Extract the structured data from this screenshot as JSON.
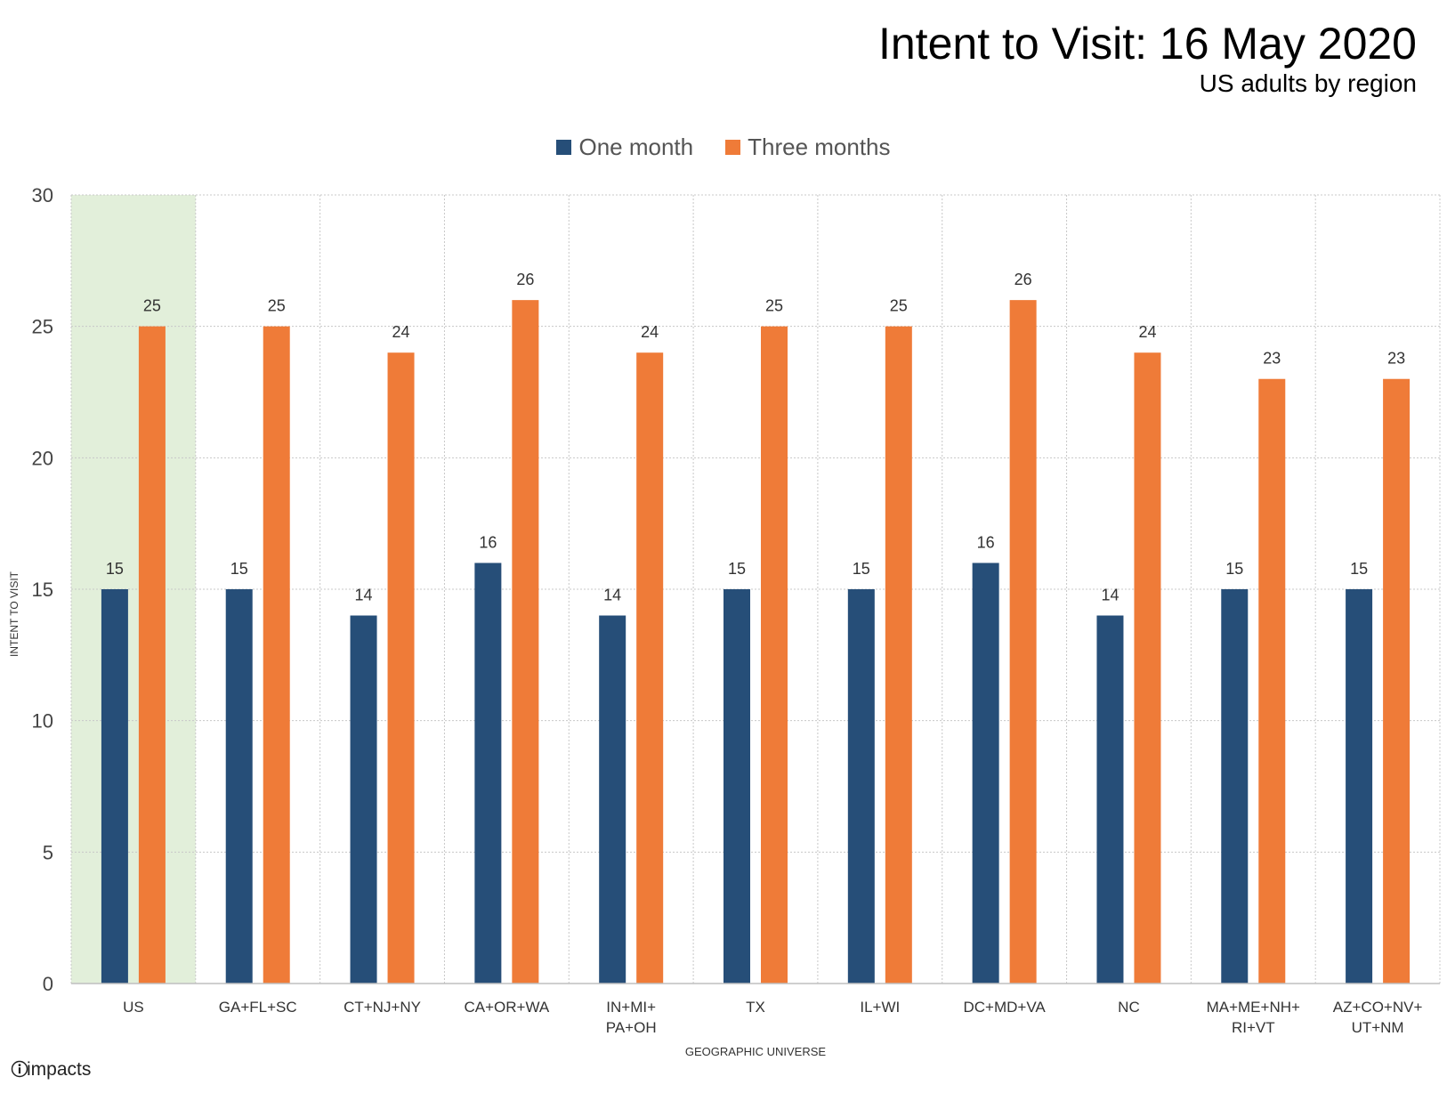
{
  "chart_data": {
    "type": "bar",
    "title": "Intent to Visit: 16 May 2020",
    "subtitle": "US adults by region",
    "xlabel": "GEOGRAPHIC UNIVERSE",
    "ylabel": "INTENT TO VISIT",
    "ylim": [
      0,
      30
    ],
    "yticks": [
      0,
      5,
      10,
      15,
      20,
      25,
      30
    ],
    "grid": true,
    "legend_position": "top-center",
    "highlight_category": "US",
    "highlight_color": "#e2efda",
    "categories": [
      "US",
      "GA+FL+SC",
      "CT+NJ+NY",
      "CA+OR+WA",
      "IN+MI+\nPA+OH",
      "TX",
      "IL+WI",
      "DC+MD+VA",
      "NC",
      "MA+ME+NH+\nRI+VT",
      "AZ+CO+NV+\nUT+NM"
    ],
    "series": [
      {
        "name": "One month",
        "color": "#264e78",
        "values": [
          15,
          15,
          14,
          16,
          14,
          15,
          15,
          16,
          14,
          15,
          15
        ]
      },
      {
        "name": "Three months",
        "color": "#ef7b38",
        "values": [
          25,
          25,
          24,
          26,
          24,
          25,
          25,
          26,
          24,
          23,
          23
        ]
      }
    ]
  },
  "brand": {
    "name": "impacts",
    "logo_icon": "info-circle-icon"
  }
}
